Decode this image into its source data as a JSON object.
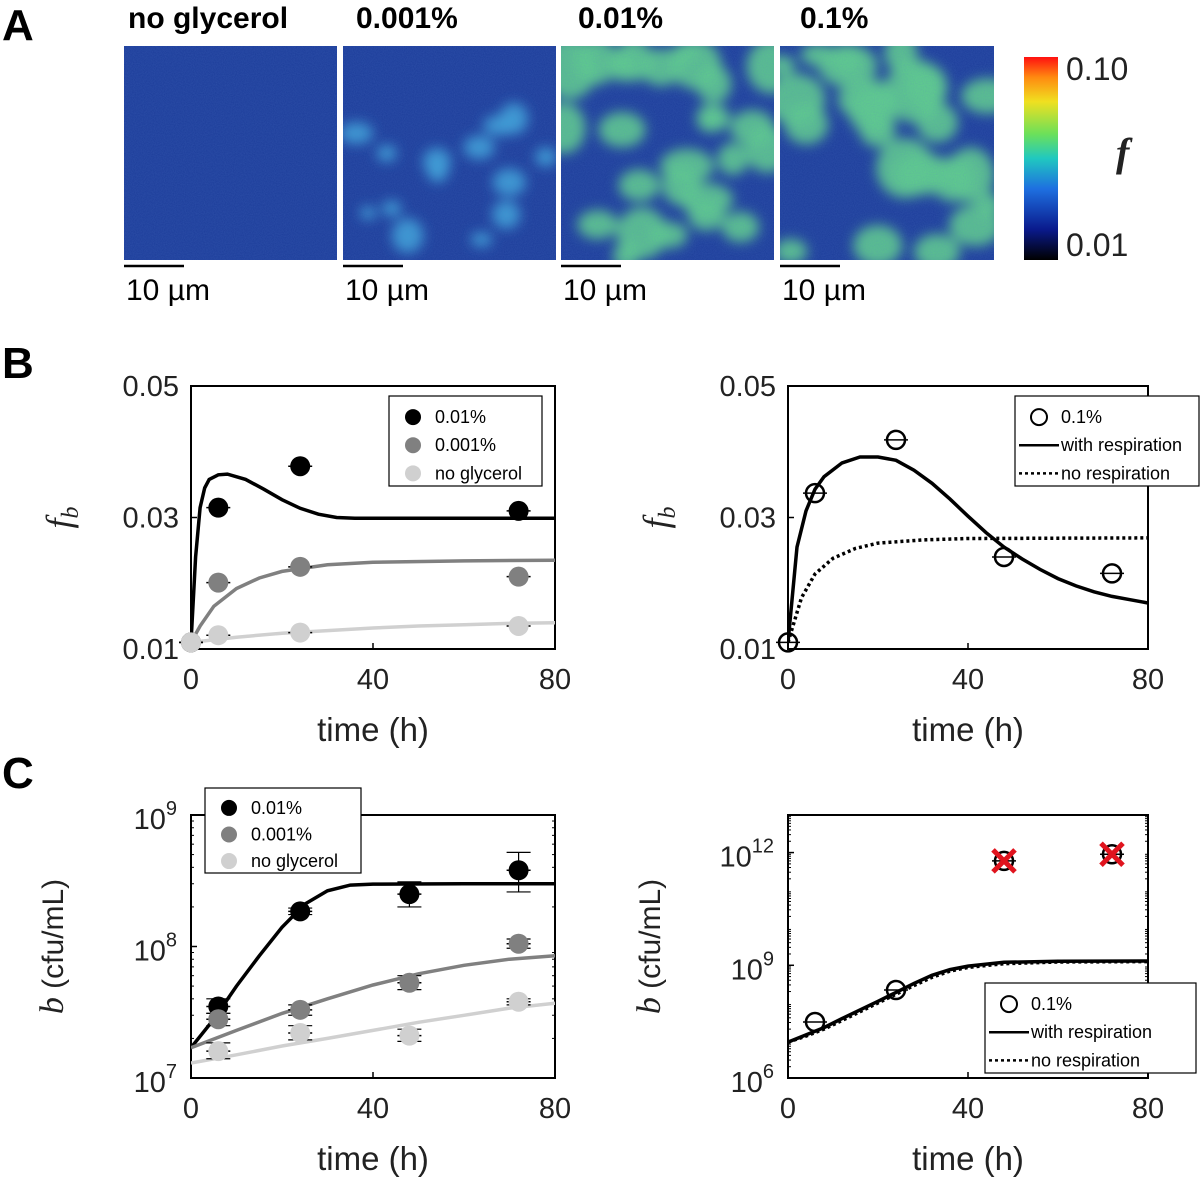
{
  "panel_a": {
    "letter": "A",
    "image_titles": [
      "no glycerol",
      "0.001%",
      "0.01%",
      "0.1%"
    ],
    "scale_bar_label": "10 µm",
    "colorbar": {
      "max_label": "0.10",
      "min_label": "0.01",
      "symbol": "f"
    },
    "colors": {
      "background": "#1c3d9a",
      "blob": "#5fd08a"
    }
  },
  "panel_b": {
    "letter": "B"
  },
  "panel_c": {
    "letter": "C"
  },
  "chart_data": [
    {
      "id": "b_left",
      "type": "scatter",
      "xlabel": "time (h)",
      "ylabel": "f_b",
      "xlim": [
        0,
        80
      ],
      "ylim": [
        0.01,
        0.05
      ],
      "yscale": "linear",
      "xticks": [
        0,
        40,
        80
      ],
      "yticks": [
        0.01,
        0.03,
        0.05
      ],
      "ytick_labels": [
        "0.01",
        "0.03",
        "0.05"
      ],
      "legend": {
        "position": "top-right",
        "entries": [
          "0.01%",
          "0.001%",
          "no glycerol"
        ]
      },
      "series": [
        {
          "name": "0.01%",
          "color": "#000000",
          "points": [
            [
              0,
              0.011
            ],
            [
              6,
              0.0315
            ],
            [
              24,
              0.0378
            ],
            [
              72,
              0.031
            ]
          ],
          "errors": [
            0,
            1.5,
            2,
            2
          ],
          "fit": [
            [
              0,
              0.011
            ],
            [
              1,
              0.024
            ],
            [
              2,
              0.0315
            ],
            [
              3,
              0.0345
            ],
            [
              4,
              0.0358
            ],
            [
              6,
              0.0365
            ],
            [
              8,
              0.0366
            ],
            [
              12,
              0.0358
            ],
            [
              16,
              0.0343
            ],
            [
              20,
              0.0327
            ],
            [
              24,
              0.0314
            ],
            [
              28,
              0.0305
            ],
            [
              32,
              0.03
            ],
            [
              36,
              0.0299
            ],
            [
              40,
              0.0299
            ],
            [
              60,
              0.0299
            ],
            [
              80,
              0.0299
            ]
          ]
        },
        {
          "name": "0.001%",
          "color": "#808080",
          "points": [
            [
              0,
              0.011
            ],
            [
              6,
              0.0201
            ],
            [
              24,
              0.0225
            ],
            [
              72,
              0.021
            ]
          ],
          "errors": [
            0,
            1.5,
            2,
            2
          ],
          "fit": [
            [
              0,
              0.011
            ],
            [
              2,
              0.0135
            ],
            [
              5,
              0.0165
            ],
            [
              10,
              0.0192
            ],
            [
              15,
              0.0208
            ],
            [
              20,
              0.0218
            ],
            [
              30,
              0.0228
            ],
            [
              40,
              0.0232
            ],
            [
              60,
              0.0234
            ],
            [
              80,
              0.0235
            ]
          ]
        },
        {
          "name": "no glycerol",
          "color": "#d0d0d0",
          "points": [
            [
              0,
              0.011
            ],
            [
              6,
              0.0121
            ],
            [
              24,
              0.0125
            ],
            [
              72,
              0.0135
            ]
          ],
          "errors": [
            0,
            1.5,
            2,
            2
          ],
          "fit": [
            [
              0,
              0.011
            ],
            [
              10,
              0.0118
            ],
            [
              20,
              0.0124
            ],
            [
              30,
              0.0128
            ],
            [
              40,
              0.0132
            ],
            [
              50,
              0.0135
            ],
            [
              60,
              0.0137
            ],
            [
              70,
              0.0139
            ],
            [
              80,
              0.014
            ]
          ]
        }
      ]
    },
    {
      "id": "b_right",
      "type": "scatter",
      "xlabel": "time (h)",
      "ylabel": "f_b",
      "xlim": [
        0,
        80
      ],
      "ylim": [
        0.01,
        0.05
      ],
      "yscale": "linear",
      "xticks": [
        0,
        40,
        80
      ],
      "yticks": [
        0.01,
        0.03,
        0.05
      ],
      "ytick_labels": [
        "0.01",
        "0.03",
        "0.05"
      ],
      "legend": {
        "position": "top-right",
        "entries": [
          "0.1%",
          "with respiration",
          "no respiration"
        ]
      },
      "series": [
        {
          "name": "0.1%",
          "color": "#000000",
          "marker": "open-circle",
          "points": [
            [
              0,
              0.011
            ],
            [
              6,
              0.0337
            ],
            [
              24,
              0.0418
            ],
            [
              48,
              0.024
            ],
            [
              72,
              0.0215
            ]
          ],
          "errors": [
            2,
            2,
            2,
            2,
            2
          ]
        },
        {
          "name": "with respiration",
          "color": "#000000",
          "style": "solid",
          "fit": [
            [
              0,
              0.011
            ],
            [
              2,
              0.0255
            ],
            [
              4,
              0.031
            ],
            [
              6,
              0.0343
            ],
            [
              8,
              0.0362
            ],
            [
              12,
              0.0383
            ],
            [
              16,
              0.0392
            ],
            [
              20,
              0.0392
            ],
            [
              24,
              0.0387
            ],
            [
              28,
              0.0372
            ],
            [
              32,
              0.0352
            ],
            [
              36,
              0.0328
            ],
            [
              40,
              0.0302
            ],
            [
              44,
              0.0277
            ],
            [
              48,
              0.0255
            ],
            [
              52,
              0.0237
            ],
            [
              56,
              0.0221
            ],
            [
              60,
              0.0207
            ],
            [
              64,
              0.0196
            ],
            [
              68,
              0.0187
            ],
            [
              72,
              0.018
            ],
            [
              76,
              0.0175
            ],
            [
              80,
              0.017
            ]
          ]
        },
        {
          "name": "no respiration",
          "color": "#000000",
          "style": "dotted",
          "fit": [
            [
              0,
              0.011
            ],
            [
              3,
              0.0178
            ],
            [
              6,
              0.0214
            ],
            [
              10,
              0.0238
            ],
            [
              15,
              0.0253
            ],
            [
              20,
              0.0261
            ],
            [
              30,
              0.0266
            ],
            [
              40,
              0.0268
            ],
            [
              80,
              0.0269
            ]
          ]
        }
      ]
    },
    {
      "id": "c_left",
      "type": "scatter",
      "xlabel": "time (h)",
      "ylabel": "b (cfu/mL)",
      "xlim": [
        0,
        80
      ],
      "ylim": [
        10000000,
        1000000000
      ],
      "yscale": "log",
      "xticks": [
        0,
        40,
        80
      ],
      "yticks": [
        10000000,
        100000000,
        1000000000
      ],
      "ytick_labels": [
        [
          "10",
          "7"
        ],
        [
          "10",
          "8"
        ],
        [
          "10",
          "9"
        ]
      ],
      "legend": {
        "position": "top-left",
        "entries": [
          "0.01%",
          "0.001%",
          "no glycerol"
        ]
      },
      "series": [
        {
          "name": "0.01%",
          "color": "#000000",
          "points": [
            [
              6,
              35000000
            ],
            [
              24,
              185000000
            ],
            [
              48,
              250000000
            ],
            [
              72,
              380000000
            ]
          ],
          "yerr_low": [
            31000000,
            175000000,
            200000000,
            260000000
          ],
          "yerr_high": [
            40000000,
            196000000,
            310000000,
            520000000
          ],
          "fit": [
            [
              0,
              17000000
            ],
            [
              5,
              28000000
            ],
            [
              10,
              50000000
            ],
            [
              15,
              85000000
            ],
            [
              20,
              140000000
            ],
            [
              25,
              210000000
            ],
            [
              30,
              265000000
            ],
            [
              35,
              293000000
            ],
            [
              40,
              298000000
            ],
            [
              60,
              300000000
            ],
            [
              80,
              300000000
            ]
          ]
        },
        {
          "name": "0.001%",
          "color": "#808080",
          "points": [
            [
              6,
              28000000
            ],
            [
              24,
              33000000
            ],
            [
              48,
              53000000
            ],
            [
              72,
              105000000
            ]
          ],
          "yerr_low": [
            25000000,
            30000000,
            47000000,
            97000000
          ],
          "yerr_high": [
            31000000,
            36000000,
            60000000,
            114000000
          ],
          "fit": [
            [
              0,
              17000000
            ],
            [
              10,
              23000000
            ],
            [
              20,
              31000000
            ],
            [
              30,
              40000000
            ],
            [
              40,
              51000000
            ],
            [
              50,
              62000000
            ],
            [
              60,
              72000000
            ],
            [
              70,
              80000000
            ],
            [
              80,
              85000000
            ]
          ]
        },
        {
          "name": "no glycerol",
          "color": "#d0d0d0",
          "points": [
            [
              6,
              16000000
            ],
            [
              24,
              22000000
            ],
            [
              48,
              21000000
            ],
            [
              72,
              38000000
            ]
          ],
          "yerr_low": [
            14000000,
            19500000,
            19000000,
            36000000
          ],
          "yerr_high": [
            18500000,
            25000000,
            23500000,
            40000000
          ],
          "fit": [
            [
              0,
              13000000
            ],
            [
              10,
              15000000
            ],
            [
              20,
              17500000
            ],
            [
              30,
              20000000
            ],
            [
              40,
              23000000
            ],
            [
              50,
              26500000
            ],
            [
              60,
              30000000
            ],
            [
              70,
              34000000
            ],
            [
              80,
              37000000
            ]
          ]
        }
      ]
    },
    {
      "id": "c_right",
      "type": "scatter",
      "xlabel": "time (h)",
      "ylabel": "b (cfu/mL)",
      "xlim": [
        0,
        80
      ],
      "ylim": [
        1000000,
        10000000000000
      ],
      "yscale": "log",
      "xticks": [
        0,
        40,
        80
      ],
      "yticks": [
        1000000,
        1000000000,
        1000000000000
      ],
      "ytick_labels": [
        [
          "10",
          "6"
        ],
        [
          "10",
          "9"
        ],
        [
          "10",
          "12"
        ]
      ],
      "legend": {
        "position": "bottom-right",
        "entries": [
          "0.1%",
          "with respiration",
          "no respiration"
        ]
      },
      "series": [
        {
          "name": "0.1%",
          "color": "#000000",
          "marker": "open-circle",
          "points": [
            [
              6,
              31000000
            ],
            [
              24,
              220000000
            ],
            [
              48,
              600000000000
            ],
            [
              72,
              900000000000
            ]
          ],
          "excluded": [
            false,
            false,
            true,
            true
          ]
        },
        {
          "name": "with respiration",
          "color": "#000000",
          "style": "solid",
          "fit": [
            [
              0,
              9000000
            ],
            [
              4,
              14000000
            ],
            [
              8,
              22000000
            ],
            [
              12,
              38000000
            ],
            [
              16,
              65000000
            ],
            [
              20,
              110000000
            ],
            [
              24,
              190000000
            ],
            [
              28,
              330000000
            ],
            [
              32,
              540000000
            ],
            [
              36,
              770000000
            ],
            [
              40,
              950000000
            ],
            [
              48,
              1200000000
            ],
            [
              60,
              1280000000
            ],
            [
              80,
              1300000000
            ]
          ]
        },
        {
          "name": "no respiration",
          "color": "#000000",
          "style": "dotted",
          "fit": [
            [
              0,
              9000000
            ],
            [
              4,
              13000000
            ],
            [
              8,
              20000000
            ],
            [
              12,
              34000000
            ],
            [
              16,
              58000000
            ],
            [
              20,
              100000000
            ],
            [
              24,
              170000000
            ],
            [
              28,
              290000000
            ],
            [
              32,
              480000000
            ],
            [
              36,
              700000000
            ],
            [
              40,
              880000000
            ],
            [
              48,
              1100000000
            ],
            [
              60,
              1220000000
            ],
            [
              80,
              1250000000
            ]
          ]
        }
      ]
    }
  ]
}
